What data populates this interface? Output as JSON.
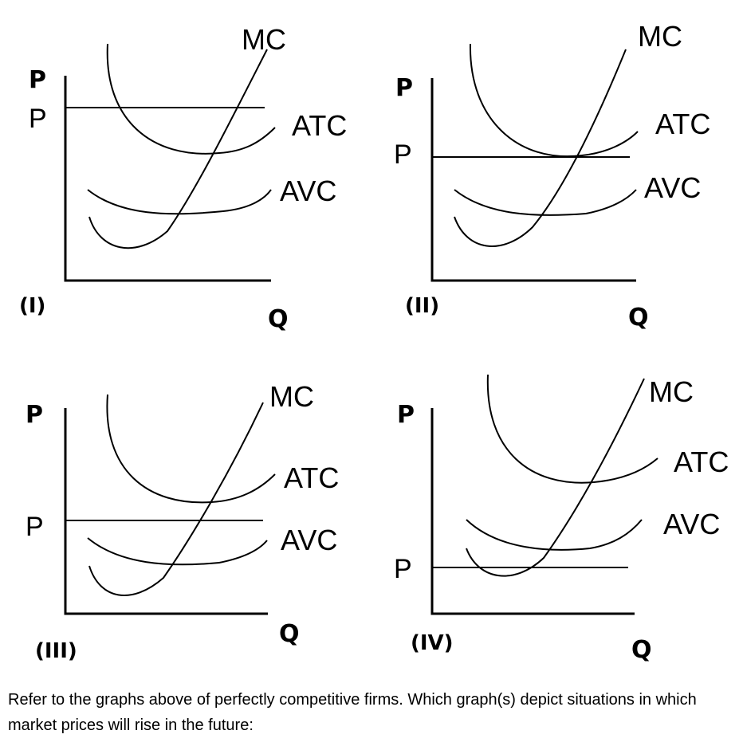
{
  "panels": [
    {
      "id": "I",
      "label": "(I)",
      "p_axis_label": "P",
      "p_line_label": "P",
      "q_label": "Q",
      "curves": {
        "mc": "MC",
        "atc": "ATC",
        "avc": "AVC"
      },
      "price_position": "above ATC minimum"
    },
    {
      "id": "II",
      "label": "(II)",
      "p_axis_label": "P",
      "p_line_label": "P",
      "q_label": "Q",
      "curves": {
        "mc": "MC",
        "atc": "ATC",
        "avc": "AVC"
      },
      "price_position": "at ATC minimum"
    },
    {
      "id": "III",
      "label": "(III)",
      "p_axis_label": "P",
      "p_line_label": "P",
      "q_label": "Q",
      "curves": {
        "mc": "MC",
        "atc": "ATC",
        "avc": "AVC"
      },
      "price_position": "between AVC minimum and ATC minimum"
    },
    {
      "id": "IV",
      "label": "(IV)",
      "p_axis_label": "P",
      "p_line_label": "P",
      "q_label": "Q",
      "curves": {
        "mc": "MC",
        "atc": "ATC",
        "avc": "AVC"
      },
      "price_position": "below AVC minimum"
    }
  ],
  "question": "Refer to the graphs above of perfectly competitive firms. Which graph(s) depict situations in which market prices will rise in the future:"
}
